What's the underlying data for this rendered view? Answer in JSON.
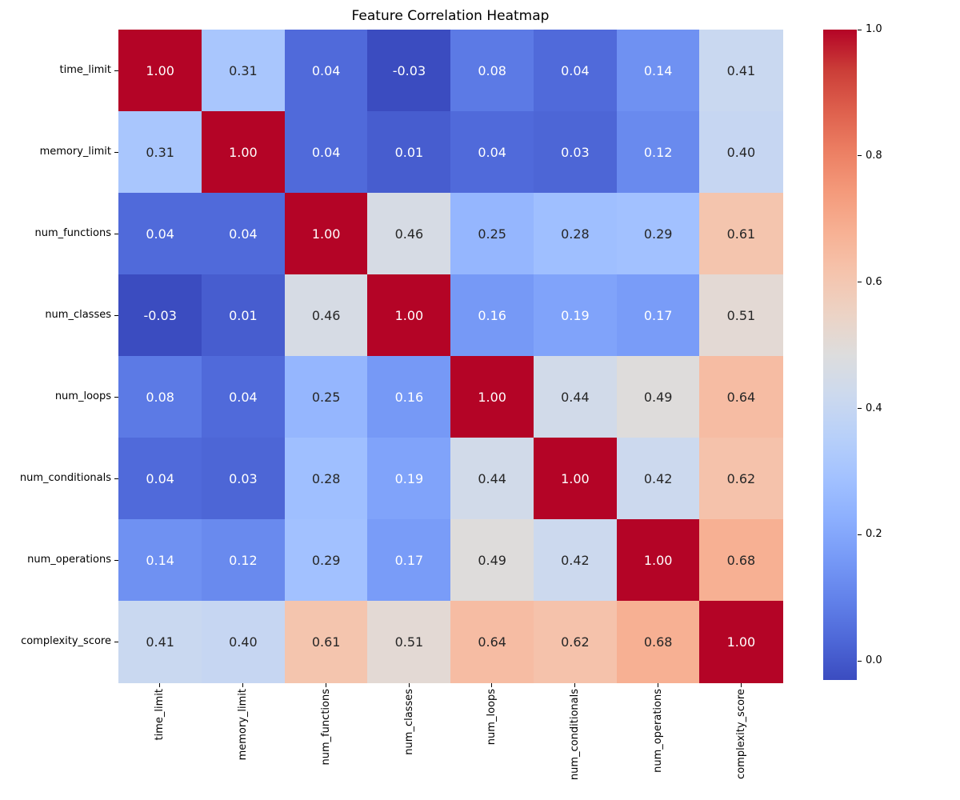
{
  "chart_data": {
    "type": "heatmap",
    "title": "Feature Correlation Heatmap",
    "categories": [
      "time_limit",
      "memory_limit",
      "num_functions",
      "num_classes",
      "num_loops",
      "num_conditionals",
      "num_operations",
      "complexity_score"
    ],
    "matrix": [
      [
        1.0,
        0.31,
        0.04,
        -0.03,
        0.08,
        0.04,
        0.14,
        0.41
      ],
      [
        0.31,
        1.0,
        0.04,
        0.01,
        0.04,
        0.03,
        0.12,
        0.4
      ],
      [
        0.04,
        0.04,
        1.0,
        0.46,
        0.25,
        0.28,
        0.29,
        0.61
      ],
      [
        -0.03,
        0.01,
        0.46,
        1.0,
        0.16,
        0.19,
        0.17,
        0.51
      ],
      [
        0.08,
        0.04,
        0.25,
        0.16,
        1.0,
        0.44,
        0.49,
        0.64
      ],
      [
        0.04,
        0.03,
        0.28,
        0.19,
        0.44,
        1.0,
        0.42,
        0.62
      ],
      [
        0.14,
        0.12,
        0.29,
        0.17,
        0.49,
        0.42,
        1.0,
        0.68
      ],
      [
        0.41,
        0.4,
        0.61,
        0.51,
        0.64,
        0.62,
        0.68,
        1.0
      ]
    ],
    "value_format_decimals": 2,
    "vmin": -0.03,
    "vmax": 1.0,
    "colormap": "coolwarm",
    "colormap_anchors": [
      "#3B4CC0",
      "#4E68D8",
      "#6282EA",
      "#779AF7",
      "#8DB0FE",
      "#A3C2FF",
      "#B8D0F9",
      "#CCD9EE",
      "#DDDDDD",
      "#ECD3C5",
      "#F5C4AD",
      "#F7B194",
      "#F49A7B",
      "#EC7F63",
      "#DE604D",
      "#CB3E38",
      "#B40426"
    ],
    "annotation_text_colors": {
      "light": "#FFFFFF",
      "dark": "#262626"
    },
    "x_tick_rotation": 90,
    "grid": false,
    "legend": "none",
    "colorbar": {
      "position": "right",
      "ticks": [
        {
          "label": "1.0",
          "value": 1.0
        },
        {
          "label": "0.8",
          "value": 0.8
        },
        {
          "label": "0.6",
          "value": 0.6
        },
        {
          "label": "0.4",
          "value": 0.4
        },
        {
          "label": "0.2",
          "value": 0.2
        },
        {
          "label": "0.0",
          "value": 0.0
        }
      ]
    }
  }
}
